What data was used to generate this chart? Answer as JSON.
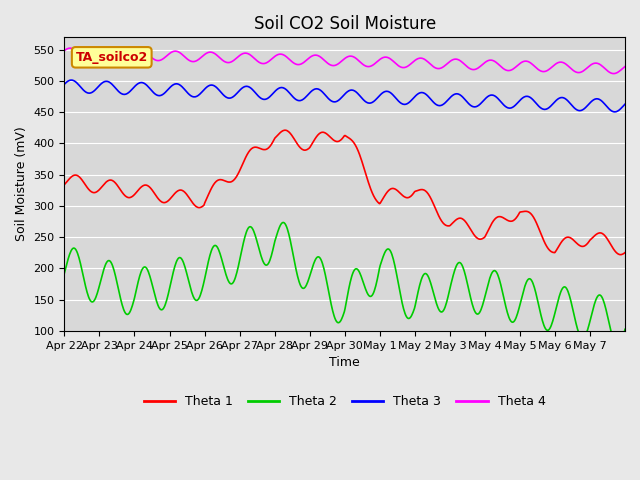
{
  "title": "Soil CO2 Soil Moisture",
  "xlabel": "Time",
  "ylabel": "Soil Moisture (mV)",
  "annotation": "TA_soilco2",
  "ylim": [
    100,
    570
  ],
  "yticks": [
    100,
    150,
    200,
    250,
    300,
    350,
    400,
    450,
    500,
    550
  ],
  "xlabels": [
    "Apr 22",
    "Apr 23",
    "Apr 24",
    "Apr 25",
    "Apr 26",
    "Apr 27",
    "Apr 28",
    "Apr 29",
    "Apr 30",
    "May 1",
    "May 2",
    "May 3",
    "May 4",
    "May 5",
    "May 6",
    "May 7"
  ],
  "colors": {
    "theta1": "#ff0000",
    "theta2": "#00cc00",
    "theta3": "#0000ff",
    "theta4": "#ff00ff"
  },
  "background_color": "#e8e8e8",
  "plot_bg_color": "#d8d8d8",
  "legend_labels": [
    "Theta 1",
    "Theta 2",
    "Theta 3",
    "Theta 4"
  ],
  "grid_color": "#ffffff",
  "annotation_bg": "#ffff99",
  "annotation_border": "#cc8800"
}
